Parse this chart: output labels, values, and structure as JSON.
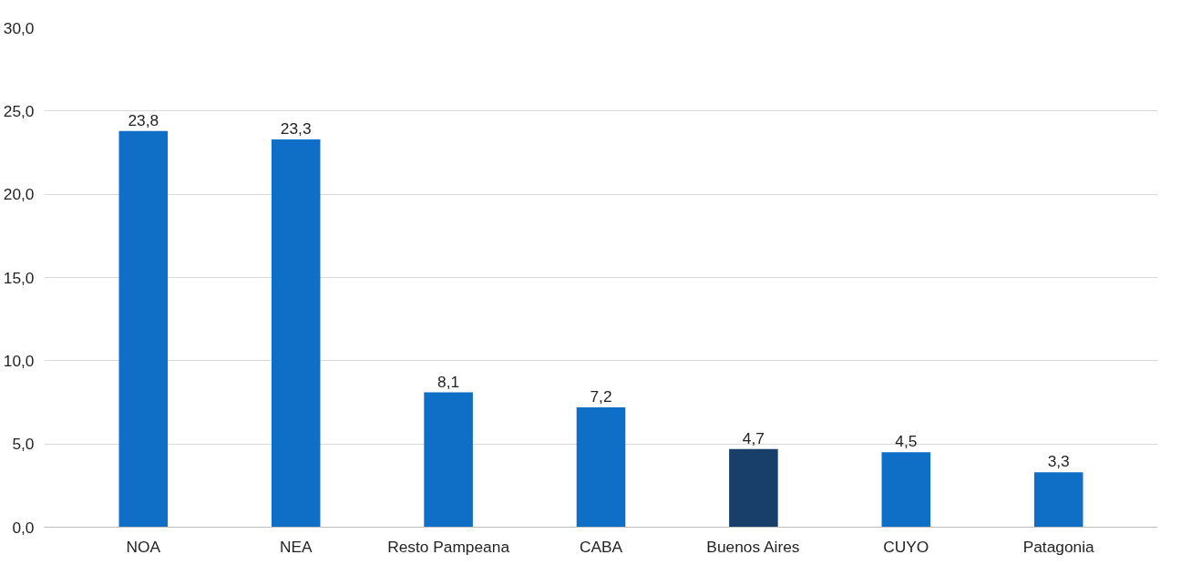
{
  "chart_data": {
    "type": "bar",
    "categories": [
      "NOA",
      "NEA",
      "Resto Pampeana",
      "CABA",
      "Buenos Aires",
      "CUYO",
      "Patagonia"
    ],
    "values": [
      23.8,
      23.3,
      8.1,
      7.2,
      4.7,
      4.5,
      3.3
    ],
    "colors": [
      "#0f6fc6",
      "#0f6fc6",
      "#0f6fc6",
      "#0f6fc6",
      "#183f6a",
      "#0f6fc6",
      "#0f6fc6"
    ],
    "value_labels": [
      "23,8",
      "23,3",
      "8,1",
      "7,2",
      "4,7",
      "4,5",
      "3,3"
    ],
    "ylim": [
      0,
      30
    ],
    "yticks": [
      {
        "value": 0,
        "label": "0,0"
      },
      {
        "value": 5,
        "label": "5,0"
      },
      {
        "value": 10,
        "label": "10,0"
      },
      {
        "value": 15,
        "label": "15,0"
      },
      {
        "value": 20,
        "label": "20,0"
      },
      {
        "value": 25,
        "label": "25,0"
      },
      {
        "value": 30,
        "label": "30,0"
      }
    ],
    "grid": "y"
  }
}
